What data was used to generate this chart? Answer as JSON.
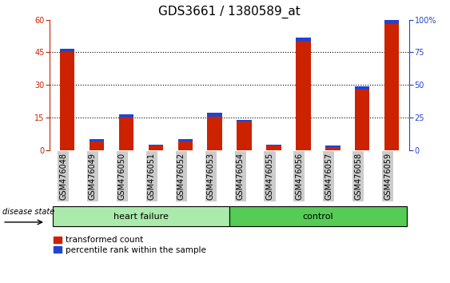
{
  "title": "GDS3661 / 1380589_at",
  "samples": [
    "GSM476048",
    "GSM476049",
    "GSM476050",
    "GSM476051",
    "GSM476052",
    "GSM476053",
    "GSM476054",
    "GSM476055",
    "GSM476056",
    "GSM476057",
    "GSM476058",
    "GSM476059"
  ],
  "red_values": [
    45.0,
    4.0,
    15.0,
    2.0,
    4.0,
    15.5,
    13.0,
    2.0,
    50.0,
    1.5,
    28.0,
    58.0
  ],
  "blue_values": [
    1.8,
    0.9,
    1.5,
    0.5,
    0.9,
    1.5,
    0.9,
    0.5,
    1.8,
    0.5,
    1.5,
    2.0
  ],
  "ylim": [
    0,
    60
  ],
  "yticks": [
    0,
    15,
    30,
    45,
    60
  ],
  "right_yticks": [
    0,
    25,
    50,
    75,
    100
  ],
  "heart_failure_count": 6,
  "control_count": 6,
  "bar_color_red": "#cc2200",
  "bar_color_blue": "#2244cc",
  "bar_width": 0.5,
  "tick_bg_color": "#cccccc",
  "heart_failure_color": "#aaeaaa",
  "control_color": "#55cc55",
  "legend_red_label": "transformed count",
  "legend_blue_label": "percentile rank within the sample",
  "disease_state_label": "disease state",
  "heart_failure_label": "heart failure",
  "control_label": "control",
  "title_fontsize": 11,
  "tick_fontsize": 7,
  "label_fontsize": 8,
  "grid_yticks": [
    15,
    30,
    45
  ]
}
